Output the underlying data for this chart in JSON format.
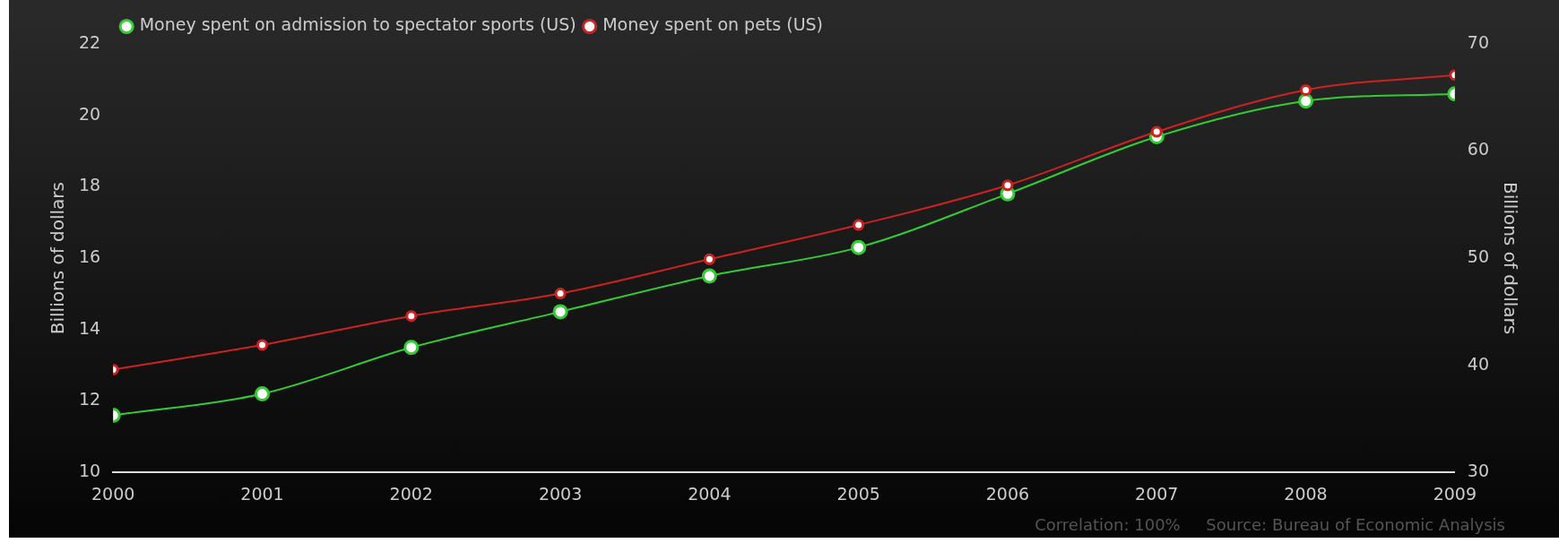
{
  "chart_data": {
    "type": "line",
    "x": [
      2000,
      2001,
      2002,
      2003,
      2004,
      2005,
      2006,
      2007,
      2008,
      2009
    ],
    "xlim": [
      2000,
      2009
    ],
    "xticks": [
      2000,
      2001,
      2002,
      2003,
      2004,
      2005,
      2006,
      2007,
      2008,
      2009
    ],
    "ylabel": "Billions of dollars",
    "y2label": "Billions of dollars",
    "ylim": [
      10,
      22
    ],
    "yticks": [
      10,
      12,
      14,
      16,
      18,
      20,
      22
    ],
    "y2lim": [
      30,
      70
    ],
    "y2ticks": [
      30,
      40,
      50,
      60,
      70
    ],
    "series": [
      {
        "name": "Money spent on admission to spectator sports (US)",
        "color": "#33cc33",
        "values": [
          11.6,
          12.2,
          13.5,
          14.5,
          15.5,
          16.3,
          17.8,
          19.4,
          20.4,
          20.6
        ]
      },
      {
        "name": "Money spent on pets (US)",
        "color": "#cc2222",
        "axis": "y2",
        "values": [
          39.6,
          41.9,
          44.6,
          46.7,
          49.9,
          53.1,
          56.8,
          61.8,
          65.7,
          67.1
        ]
      }
    ],
    "legend": "top left",
    "grid": false,
    "marker": "circle",
    "line_style": "solid",
    "annotations": [
      "Correlation: 100%",
      "Source: Bureau of Economic Analysis"
    ]
  }
}
